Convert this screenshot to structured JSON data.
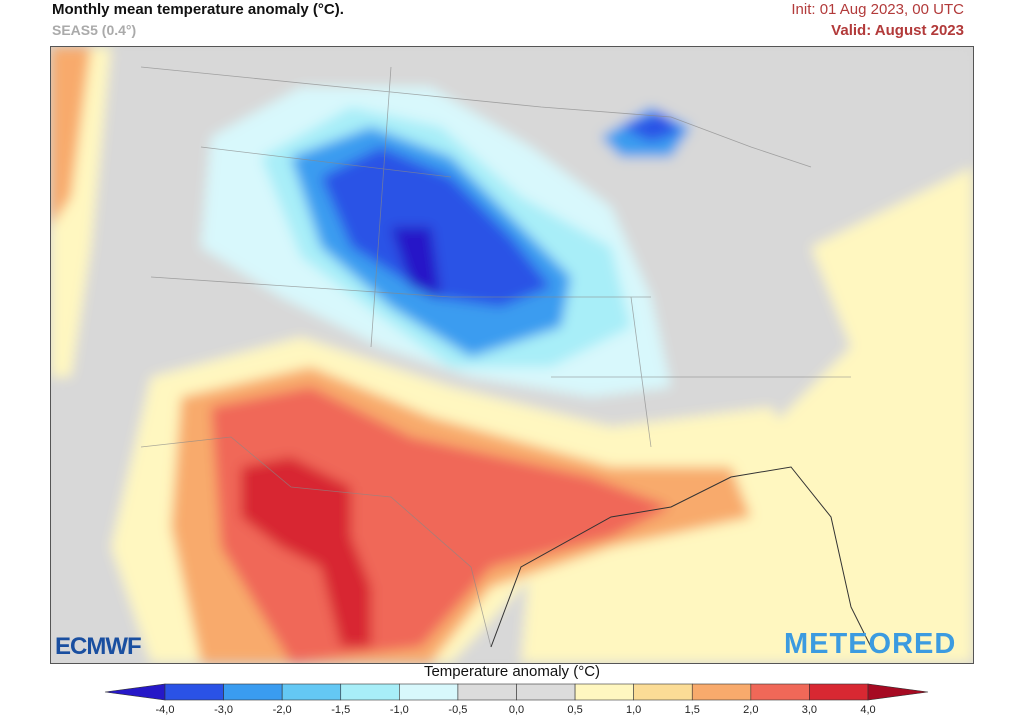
{
  "header": {
    "title": "Monthly mean temperature anomaly (°C).",
    "model": "SEAS5 (0.4°)",
    "init": "Init: 01 Aug 2023, 00 UTC",
    "valid": "Valid: August 2023"
  },
  "logos": {
    "left": "ECMWF",
    "right": "METEORED"
  },
  "colorbar": {
    "title": "Temperature anomaly (°C)",
    "ticks": [
      "-4,0",
      "-3,0",
      "-2,0",
      "-1,5",
      "-1,0",
      "-0,5",
      "0,0",
      "0,5",
      "1,0",
      "1,5",
      "2,0",
      "3,0",
      "4,0"
    ],
    "under_color": "#2618c8",
    "over_color": "#a60a22",
    "colors": [
      "#2a52e6",
      "#3a9cf0",
      "#64c8f4",
      "#a8eef8",
      "#d8f8fc",
      "#dcdcdc",
      "#dcdcdc",
      "#fff7c0",
      "#fbdc96",
      "#f8aa6c",
      "#f06858",
      "#d82832"
    ]
  }
}
